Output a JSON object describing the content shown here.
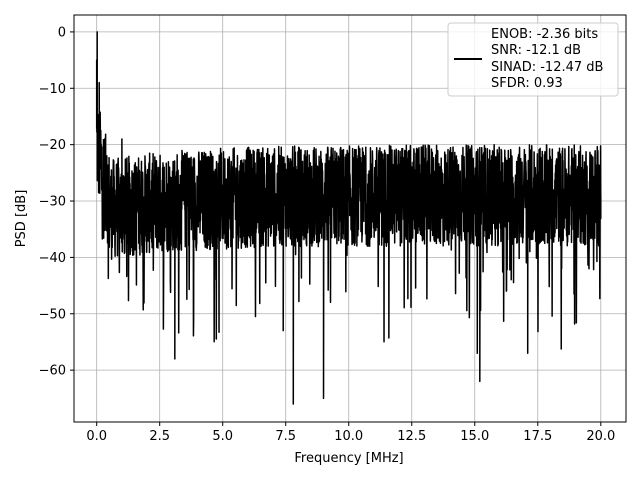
{
  "chart_data": {
    "type": "line",
    "title": "",
    "xlabel": "Frequency [MHz]",
    "ylabel": "PSD [dB]",
    "xlim": [
      -0.9,
      21.0
    ],
    "ylim": [
      -69.2,
      3.0
    ],
    "xticks": [
      0.0,
      2.5,
      5.0,
      7.5,
      10.0,
      12.5,
      15.0,
      17.5,
      20.0
    ],
    "xtick_labels": [
      "0.0",
      "2.5",
      "5.0",
      "7.5",
      "10.0",
      "12.5",
      "15.0",
      "17.5",
      "20.0"
    ],
    "yticks": [
      0,
      -10,
      -20,
      -30,
      -40,
      -50,
      -60
    ],
    "ytick_labels": [
      "0",
      "−10",
      "−20",
      "−30",
      "−40",
      "−50",
      "−60"
    ],
    "grid": true,
    "legend_position": "top-right",
    "series": [
      {
        "name": "ENOB: -2.36 bits",
        "color": "#000000",
        "x_range": [
          0.0,
          20.0
        ],
        "x": [
          0.0,
          0.02,
          0.05,
          0.1,
          0.2,
          0.4,
          0.7,
          1.0,
          1.5,
          2.0,
          2.5,
          3.0,
          3.1,
          3.5,
          4.0,
          4.3,
          5.0,
          6.0,
          7.0,
          7.4,
          7.8,
          8.0,
          9.0,
          10.0,
          11.0,
          12.0,
          13.0,
          14.0,
          15.0,
          15.1,
          15.2,
          15.5,
          16.0,
          17.0,
          17.1,
          18.0,
          19.0,
          20.0
        ],
        "y": [
          -5,
          0,
          -20,
          -9,
          -28,
          -22,
          -35,
          -19,
          -27,
          -31,
          -24,
          -33,
          -58,
          -28,
          -30,
          -26,
          -29,
          -31,
          -27,
          -53,
          -66,
          -30,
          -65,
          -29,
          -30,
          -28,
          -31,
          -27,
          -30,
          -57,
          -62,
          -28,
          -29,
          -31,
          -57,
          -28,
          -30,
          -29
        ]
      }
    ],
    "legend": [
      "ENOB: -2.36 bits",
      "SNR: -12.1 dB",
      "SINAD: -12.47 dB",
      "SFDR: 0.93"
    ],
    "color": "#000000"
  }
}
